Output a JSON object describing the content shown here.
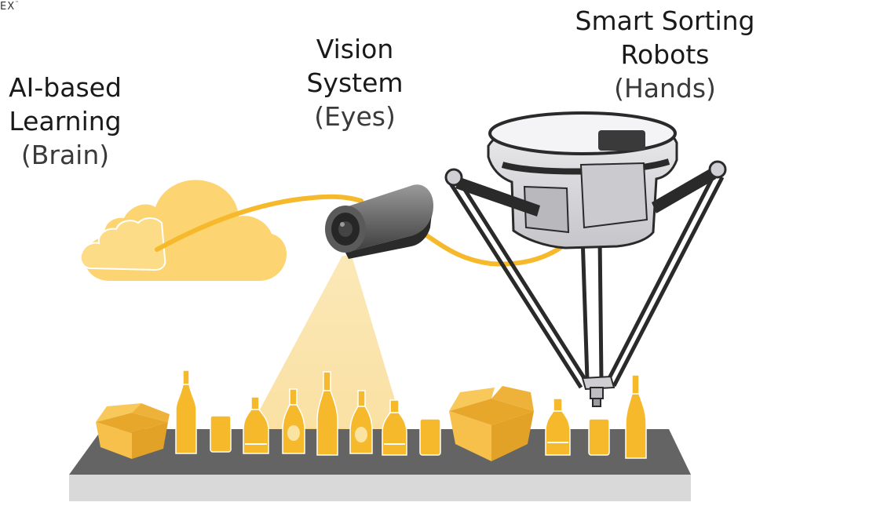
{
  "logo": {
    "text": "EX",
    "mark": "™"
  },
  "labels": {
    "brain": {
      "line1": "AI-based",
      "line2": "Learning",
      "line3": "(Brain)"
    },
    "eyes": {
      "line1": "Vision",
      "line2": "System",
      "line3": "(Eyes)"
    },
    "hands": {
      "line1": "Smart Sorting",
      "line2": "Robots",
      "line3": "(Hands)"
    }
  },
  "icons": {
    "cloud": "cloud-icon",
    "camera": "camera-icon",
    "robot": "delta-robot-icon",
    "conveyor": "conveyor-belt-icon",
    "bottle": "bottle-icon",
    "can": "can-icon",
    "box": "open-box-icon"
  },
  "colors": {
    "accent": "#f6b92b",
    "cloud": "#fcd472",
    "belt_top": "#646464",
    "belt_side": "#d9d9d9",
    "robot_body": "#dcdcdf",
    "robot_dark": "#2a2a2a"
  }
}
